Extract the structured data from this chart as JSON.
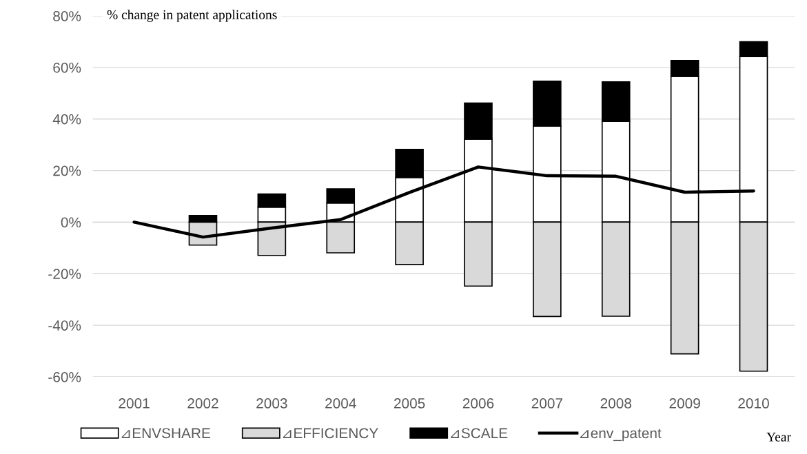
{
  "chart_data": {
    "type": "bar",
    "stacked": true,
    "ylabel": "% change in patent applications",
    "xlabel": "Year",
    "categories": [
      "2001",
      "2002",
      "2003",
      "2004",
      "2005",
      "2006",
      "2007",
      "2008",
      "2009",
      "2010"
    ],
    "series": [
      {
        "name": "⊿ENVSHARE",
        "color": "#ffffff",
        "values": [
          null,
          null,
          5.8,
          7.4,
          17.3,
          32.2,
          37.3,
          39.1,
          56.5,
          64.2
        ]
      },
      {
        "name": "⊿EFFICIENCY",
        "color": "#d9d9d9",
        "values": [
          null,
          -8.9,
          -12.9,
          -11.9,
          -16.5,
          -24.8,
          -36.6,
          -36.5,
          -51.1,
          -57.8
        ]
      },
      {
        "name": "⊿SCALE",
        "color": "#000000",
        "values": [
          null,
          2.6,
          5.1,
          5.5,
          10.9,
          14.0,
          17.4,
          15.3,
          6.2,
          5.8
        ]
      },
      {
        "name": "⊿env_patent",
        "color": "#000000",
        "type": "line",
        "values": [
          0,
          -5.8,
          -2.3,
          1.0,
          11.5,
          21.4,
          18.0,
          17.8,
          11.6,
          12.1
        ]
      }
    ],
    "ylim": [
      -60,
      80
    ],
    "yticks": [
      {
        "value": -60,
        "label": "-60%"
      },
      {
        "value": -40,
        "label": "-40%"
      },
      {
        "value": -20,
        "label": "-20%"
      },
      {
        "value": 0,
        "label": "0%"
      },
      {
        "value": 20,
        "label": "20%"
      },
      {
        "value": 40,
        "label": "40%"
      },
      {
        "value": 60,
        "label": "60%"
      },
      {
        "value": 80,
        "label": "80%"
      }
    ],
    "grid": "y",
    "legend": "bottom",
    "line_style": "solid",
    "marker": "none"
  }
}
